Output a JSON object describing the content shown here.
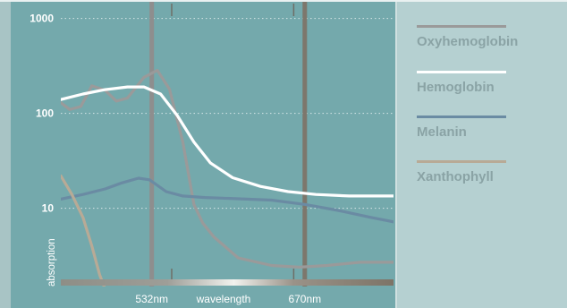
{
  "chart_data": {
    "type": "line",
    "yscale": "log",
    "ylim": [
      1.5,
      1500
    ],
    "xlim": [
      450,
      750
    ],
    "ylabel": "absorption",
    "xlabel": "wavelength",
    "y_ticks": [
      {
        "value": 1000,
        "label": "1000"
      },
      {
        "value": 100,
        "label": "100"
      },
      {
        "value": 10,
        "label": "10"
      }
    ],
    "x_ticks": [
      {
        "value": 532,
        "label": "532nm"
      },
      {
        "value": 670,
        "label": "670nm"
      }
    ],
    "x_minor_ticks": [
      550,
      660
    ],
    "vlines": [
      532,
      670
    ],
    "grid": "dotted horizontal",
    "legend_position": "right",
    "series": [
      {
        "name": "Oxyhemoglobin",
        "color": "#9a9a9a",
        "points": [
          [
            450,
            130
          ],
          [
            458,
            110
          ],
          [
            468,
            118
          ],
          [
            478,
            195
          ],
          [
            490,
            175
          ],
          [
            500,
            135
          ],
          [
            510,
            145
          ],
          [
            525,
            240
          ],
          [
            537,
            285
          ],
          [
            548,
            180
          ],
          [
            560,
            50
          ],
          [
            570,
            11
          ],
          [
            578,
            7
          ],
          [
            588,
            5
          ],
          [
            610,
            3
          ],
          [
            640,
            2.5
          ],
          [
            665,
            2.4
          ],
          [
            690,
            2.5
          ],
          [
            720,
            2.7
          ],
          [
            750,
            2.7
          ]
        ]
      },
      {
        "name": "Hemoglobin",
        "color": "#ffffff",
        "points": [
          [
            450,
            140
          ],
          [
            470,
            160
          ],
          [
            490,
            178
          ],
          [
            510,
            190
          ],
          [
            525,
            190
          ],
          [
            540,
            160
          ],
          [
            555,
            95
          ],
          [
            570,
            50
          ],
          [
            585,
            30
          ],
          [
            605,
            21
          ],
          [
            630,
            17
          ],
          [
            655,
            15
          ],
          [
            680,
            14
          ],
          [
            710,
            13.5
          ],
          [
            750,
            13.5
          ]
        ]
      },
      {
        "name": "Melanin",
        "color": "#6a8ba3",
        "points": [
          [
            450,
            12.5
          ],
          [
            470,
            14
          ],
          [
            490,
            16
          ],
          [
            505,
            18.5
          ],
          [
            520,
            20.8
          ],
          [
            530,
            20
          ],
          [
            545,
            15
          ],
          [
            560,
            13.5
          ],
          [
            580,
            13
          ],
          [
            610,
            12.6
          ],
          [
            640,
            12.2
          ],
          [
            670,
            11
          ],
          [
            700,
            9.5
          ],
          [
            730,
            8
          ],
          [
            750,
            7.2
          ]
        ]
      },
      {
        "name": "Xanthophyll",
        "color": "#b8aa96",
        "points": [
          [
            450,
            22
          ],
          [
            460,
            14
          ],
          [
            470,
            8
          ],
          [
            478,
            4
          ],
          [
            485,
            2
          ],
          [
            490,
            1.4
          ]
        ]
      }
    ]
  }
}
